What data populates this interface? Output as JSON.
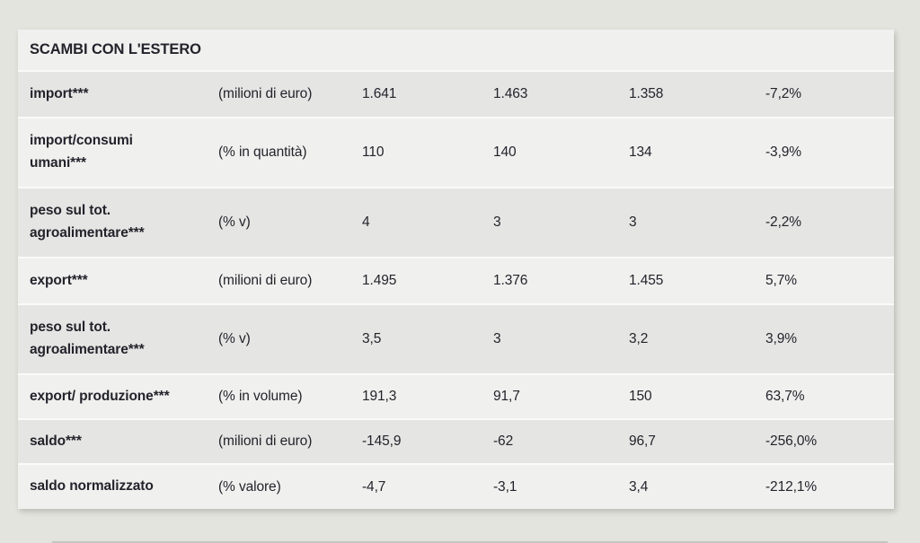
{
  "page": {
    "background": "#e4e4de",
    "panel_background": "#f0f0ef",
    "row_dark_background": "#e5e5e4",
    "row_light_background": "#f0f0ef",
    "separator_color": "#fafaf9",
    "text_color": "#23232b"
  },
  "table": {
    "title": "SCAMBI CON L'ESTERO",
    "rows": [
      {
        "label": "import***",
        "unit": "(milioni di euro)",
        "values": [
          "1.641",
          "1.463",
          "1.358",
          "-7,2%"
        ]
      },
      {
        "label": "import/consumi\numani***",
        "unit": "(% in quantità)",
        "values": [
          "110",
          "140",
          "134",
          "-3,9%"
        ]
      },
      {
        "label": "peso sul tot.\nagroalimentare***",
        "unit": "(% v)",
        "values": [
          "4",
          "3",
          "3",
          "-2,2%"
        ]
      },
      {
        "label": "export***",
        "unit": "(milioni di euro)",
        "values": [
          "1.495",
          "1.376",
          "1.455",
          "5,7%"
        ]
      },
      {
        "label": "peso sul tot.\nagroalimentare***",
        "unit": "(% v)",
        "values": [
          "3,5",
          "3",
          "3,2",
          "3,9%"
        ]
      },
      {
        "label": "export/ produzione***",
        "unit": "(% in volume)",
        "values": [
          "191,3",
          "91,7",
          "150",
          "63,7%"
        ]
      },
      {
        "label": "saldo***",
        "unit": "(milioni di euro)",
        "values": [
          "-145,9",
          "-62",
          "96,7",
          "-256,0%"
        ]
      },
      {
        "label": "saldo normalizzato",
        "unit": "(% valore)",
        "values": [
          "-4,7",
          "-3,1",
          "3,4",
          "-212,1%"
        ]
      }
    ]
  },
  "chart_data": {
    "type": "table",
    "title": "SCAMBI CON L'ESTERO",
    "rows": [
      {
        "indicator": "import***",
        "unit": "milioni di euro",
        "values": [
          1641,
          1463,
          1358
        ],
        "variation_pct": -7.2
      },
      {
        "indicator": "import/consumi umani***",
        "unit": "% in quantità",
        "values": [
          110,
          140,
          134
        ],
        "variation_pct": -3.9
      },
      {
        "indicator": "peso sul tot. agroalimentare***",
        "unit": "% v",
        "values": [
          4,
          3,
          3
        ],
        "variation_pct": -2.2
      },
      {
        "indicator": "export***",
        "unit": "milioni di euro",
        "values": [
          1495,
          1376,
          1455
        ],
        "variation_pct": 5.7
      },
      {
        "indicator": "peso sul tot. agroalimentare***",
        "unit": "% v",
        "values": [
          3.5,
          3,
          3.2
        ],
        "variation_pct": 3.9
      },
      {
        "indicator": "export/ produzione***",
        "unit": "% in volume",
        "values": [
          191.3,
          91.7,
          150
        ],
        "variation_pct": 63.7
      },
      {
        "indicator": "saldo***",
        "unit": "milioni di euro",
        "values": [
          -145.9,
          -62,
          96.7
        ],
        "variation_pct": -256.0
      },
      {
        "indicator": "saldo normalizzato",
        "unit": "% valore",
        "values": [
          -4.7,
          -3.1,
          3.4
        ],
        "variation_pct": -212.1
      }
    ],
    "layout": {
      "columns": 6,
      "grid": "off",
      "legend": "none"
    }
  }
}
